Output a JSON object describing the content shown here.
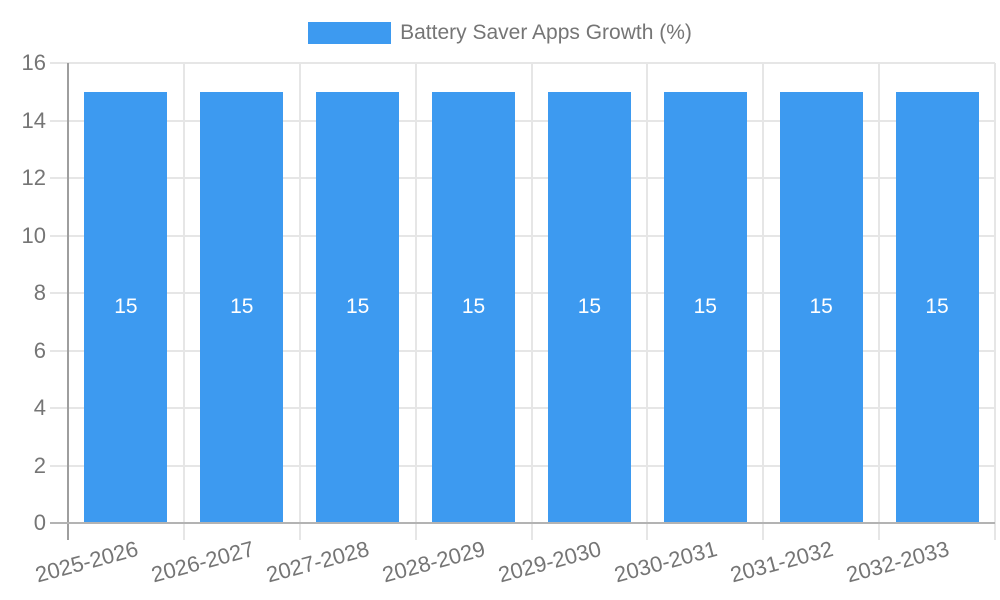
{
  "chart_data": {
    "type": "bar",
    "title": "Battery Saver Apps Growth (%)",
    "legend": {
      "position": "top-center",
      "label": "Battery Saver Apps Growth (%)",
      "swatch_color": "#3D9AF0"
    },
    "categories": [
      "2025-2026",
      "2026-2027",
      "2027-2028",
      "2028-2029",
      "2029-2030",
      "2030-2031",
      "2031-2032",
      "2032-2033"
    ],
    "values": [
      15,
      15,
      15,
      15,
      15,
      15,
      15,
      15
    ],
    "bar_labels": [
      "15",
      "15",
      "15",
      "15",
      "15",
      "15",
      "15",
      "15"
    ],
    "xlabel": "",
    "ylabel": "",
    "ylim": [
      0,
      16
    ],
    "yticks": [
      0,
      2,
      4,
      6,
      8,
      10,
      12,
      14,
      16
    ],
    "grid": true,
    "x_label_rotation_deg": -15,
    "colors": {
      "bar": "#3D9AF0",
      "bar_label": "#ffffff",
      "gridline": "#e6e6e6",
      "y_axis_line": "#9e9e9e",
      "baseline": "#b3b3b3",
      "text": "#757575",
      "background": "#ffffff"
    }
  }
}
